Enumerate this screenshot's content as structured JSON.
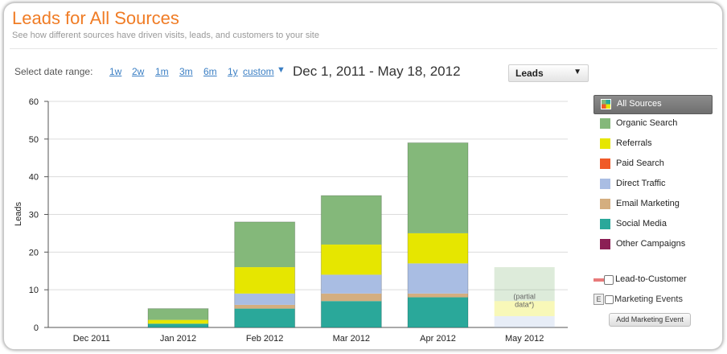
{
  "header": {
    "title": "Leads for All Sources",
    "subtitle": "See how different sources have driven visits, leads, and customers to your site"
  },
  "date_range": {
    "label": "Select date range:",
    "options": [
      "1w",
      "2w",
      "1m",
      "3m",
      "6m",
      "1y",
      "custom"
    ],
    "current": "Dec 1, 2011 - May 18, 2012"
  },
  "metric_select": {
    "value": "Leads"
  },
  "legend": {
    "items": [
      {
        "label": "All Sources",
        "color": "#6a6a6a",
        "active": true
      },
      {
        "label": "Organic Search",
        "color": "#84b87a"
      },
      {
        "label": "Referrals",
        "color": "#e6e600"
      },
      {
        "label": "Paid Search",
        "color": "#f05a28"
      },
      {
        "label": "Direct Traffic",
        "color": "#a9bde3"
      },
      {
        "label": "Email Marketing",
        "color": "#d4ae7f"
      },
      {
        "label": "Social Media",
        "color": "#2aa89a"
      },
      {
        "label": "Other Campaigns",
        "color": "#8b1f55"
      }
    ],
    "lead_to_customer": "Lead-to-Customer",
    "marketing_events": "Marketing Events",
    "marketing_events_icon": "E",
    "add_event_button": "Add Marketing Event"
  },
  "chart_data": {
    "type": "bar",
    "stacked": true,
    "title": "",
    "xlabel": "",
    "ylabel": "Leads",
    "ylim": [
      0,
      60
    ],
    "yticks": [
      0,
      10,
      20,
      30,
      40,
      50,
      60
    ],
    "grid": true,
    "categories": [
      "Dec 2011",
      "Jan 2012",
      "Feb 2012",
      "Mar 2012",
      "Apr 2012",
      "May 2012"
    ],
    "partial_categories": [
      "May 2012"
    ],
    "partial_note": "(partial data*)",
    "series": [
      {
        "name": "Social Media",
        "color": "#2aa89a",
        "values": [
          0,
          1,
          5,
          7,
          8,
          0
        ]
      },
      {
        "name": "Email Marketing",
        "color": "#d4ae7f",
        "values": [
          0,
          0,
          1,
          2,
          1,
          0
        ]
      },
      {
        "name": "Direct Traffic",
        "color": "#a9bde3",
        "values": [
          0,
          0,
          3,
          5,
          8,
          3
        ]
      },
      {
        "name": "Referrals",
        "color": "#e6e600",
        "values": [
          0,
          1,
          7,
          8,
          8,
          4
        ]
      },
      {
        "name": "Organic Search",
        "color": "#84b87a",
        "values": [
          0,
          3,
          12,
          13,
          24,
          9
        ]
      }
    ]
  }
}
